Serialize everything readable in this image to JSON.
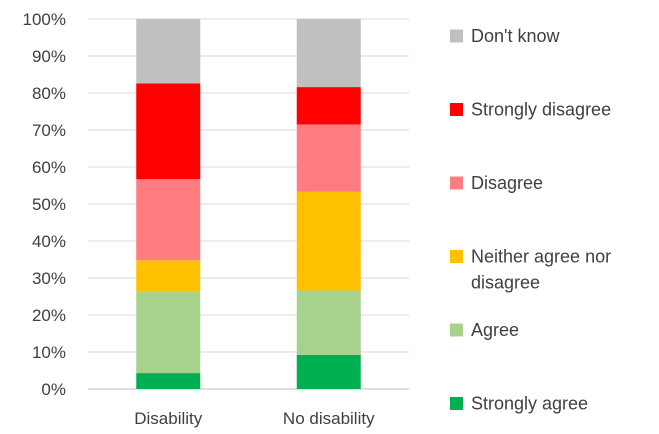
{
  "chart_data": {
    "type": "bar",
    "stacked": true,
    "categories": [
      "Disability",
      "No disability"
    ],
    "series": [
      {
        "name": "Strongly agree",
        "values": [
          4.3,
          9.2
        ],
        "color": "#00B050"
      },
      {
        "name": "Agree",
        "values": [
          22.0,
          17.4
        ],
        "color": "#A9D18E"
      },
      {
        "name": "Neither agree nor disagree",
        "values": [
          8.5,
          26.7
        ],
        "color": "#FFC000"
      },
      {
        "name": "Disagree",
        "values": [
          21.9,
          18.2
        ],
        "color": "#FF7C80"
      },
      {
        "name": "Strongly disagree",
        "values": [
          25.9,
          10.1
        ],
        "color": "#FF0000"
      },
      {
        "name": "Don't know",
        "values": [
          17.4,
          18.4
        ],
        "color": "#C0C0C0"
      }
    ],
    "ylim": [
      0,
      100
    ],
    "yticks": [
      "0%",
      "10%",
      "20%",
      "30%",
      "40%",
      "50%",
      "60%",
      "70%",
      "80%",
      "90%",
      "100%"
    ],
    "grid": true,
    "legend_position": "right",
    "legend_order": [
      "Don't know",
      "Strongly disagree",
      "Disagree",
      "Neither agree nor disagree",
      "Agree",
      "Strongly agree"
    ]
  }
}
